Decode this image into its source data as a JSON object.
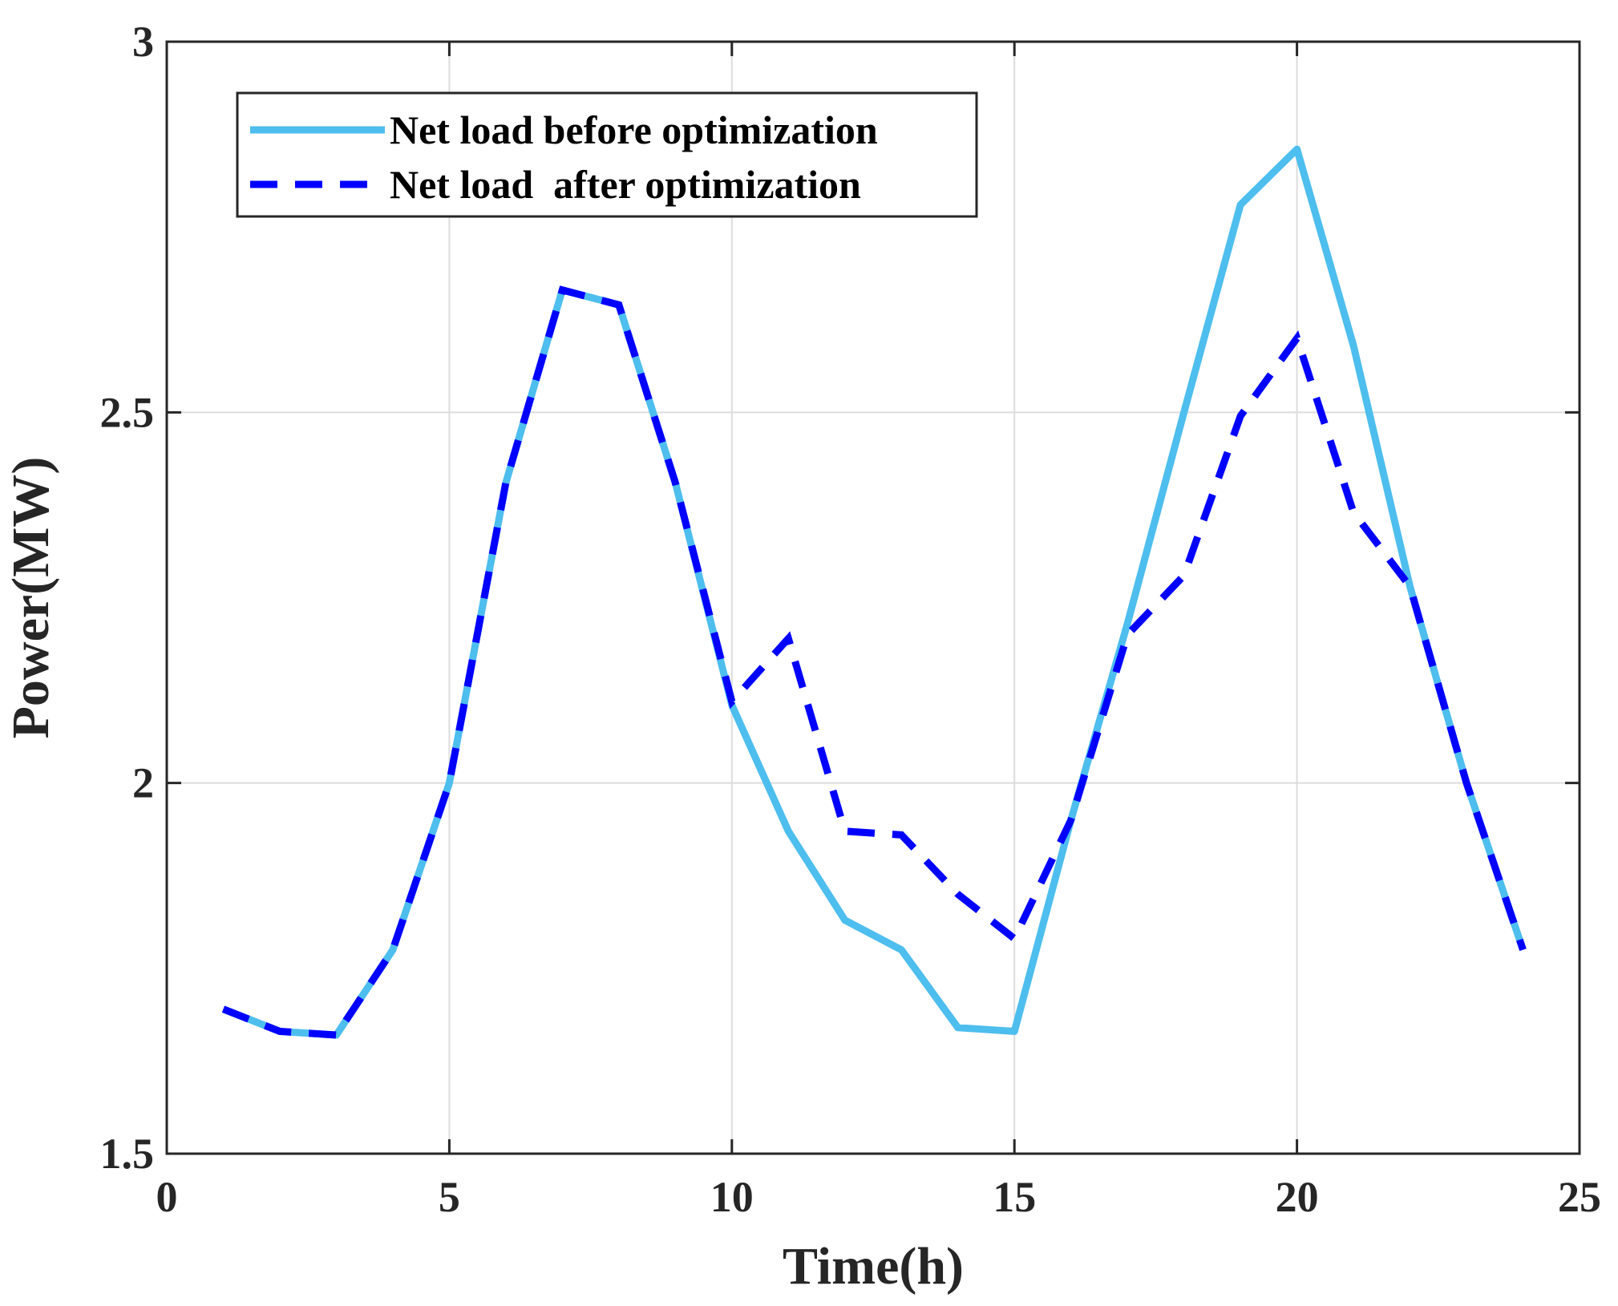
{
  "chart_data": {
    "type": "line",
    "title": "",
    "xlabel": "Time(h)",
    "ylabel": "Power(MW)",
    "xlim": [
      0,
      25
    ],
    "ylim": [
      1.5,
      3
    ],
    "xticks": [
      0,
      5,
      10,
      15,
      20,
      25
    ],
    "yticks": [
      1.5,
      2,
      2.5,
      3
    ],
    "xtick_labels": [
      "0",
      "5",
      "10",
      "15",
      "20",
      "25"
    ],
    "ytick_labels": [
      "1.5",
      "2",
      "2.5",
      "3"
    ],
    "grid": true,
    "legend_position": "top-left",
    "x": [
      1,
      2,
      3,
      4,
      5,
      6,
      7,
      8,
      9,
      10,
      11,
      12,
      13,
      14,
      15,
      16,
      17,
      18,
      19,
      20,
      21,
      22,
      23,
      24
    ],
    "series": [
      {
        "name": "Net load before optimization",
        "color": "#4DBEEE",
        "style": "solid",
        "values": [
          1.695,
          1.665,
          1.66,
          1.775,
          2.0,
          2.405,
          2.665,
          2.645,
          2.405,
          2.105,
          1.935,
          1.815,
          1.775,
          1.67,
          1.665,
          1.95,
          2.215,
          2.5,
          2.78,
          2.855,
          2.59,
          2.265,
          2.0,
          1.775
        ]
      },
      {
        "name": "Net load  after optimization",
        "color": "#0000FF",
        "style": "dashed",
        "values": [
          1.695,
          1.665,
          1.66,
          1.775,
          2.0,
          2.405,
          2.665,
          2.645,
          2.405,
          2.11,
          2.195,
          1.935,
          1.93,
          1.85,
          1.79,
          1.95,
          2.2,
          2.28,
          2.495,
          2.6,
          2.365,
          2.265,
          2.0,
          1.775
        ]
      }
    ]
  }
}
